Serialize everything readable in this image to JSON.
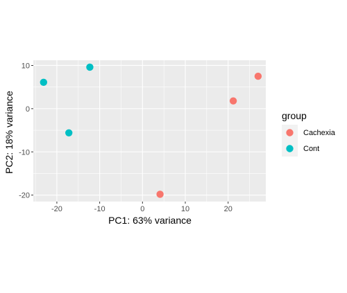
{
  "chart_data": {
    "type": "scatter",
    "title": "",
    "xlabel": "PC1: 63% variance",
    "ylabel": "PC2: 18% variance",
    "xlim": [
      -25.5,
      28.8
    ],
    "ylim": [
      -21.5,
      11.2
    ],
    "x_ticks": [
      {
        "value": -20,
        "label": "-20"
      },
      {
        "value": -10,
        "label": "-10"
      },
      {
        "value": 0,
        "label": "0"
      },
      {
        "value": 10,
        "label": "10"
      },
      {
        "value": 20,
        "label": "20"
      }
    ],
    "y_ticks": [
      {
        "value": -20,
        "label": "-20"
      },
      {
        "value": -10,
        "label": "-10"
      },
      {
        "value": 0,
        "label": "0"
      },
      {
        "value": 10,
        "label": "10"
      }
    ],
    "grid": true,
    "panel_background": "#EBEBEB",
    "grid_color": "#FFFFFF",
    "legend": {
      "title": "group",
      "placement": "right"
    },
    "series": [
      {
        "name": "Cachexia",
        "color": "#F8766D",
        "points": [
          {
            "x": 27.0,
            "y": 7.5
          },
          {
            "x": 21.2,
            "y": 1.8
          },
          {
            "x": 4.1,
            "y": -19.8
          }
        ]
      },
      {
        "name": "Cont",
        "color": "#00BFC4",
        "points": [
          {
            "x": -12.3,
            "y": 9.6
          },
          {
            "x": -23.1,
            "y": 6.1
          },
          {
            "x": -17.2,
            "y": -5.6
          }
        ]
      }
    ]
  }
}
